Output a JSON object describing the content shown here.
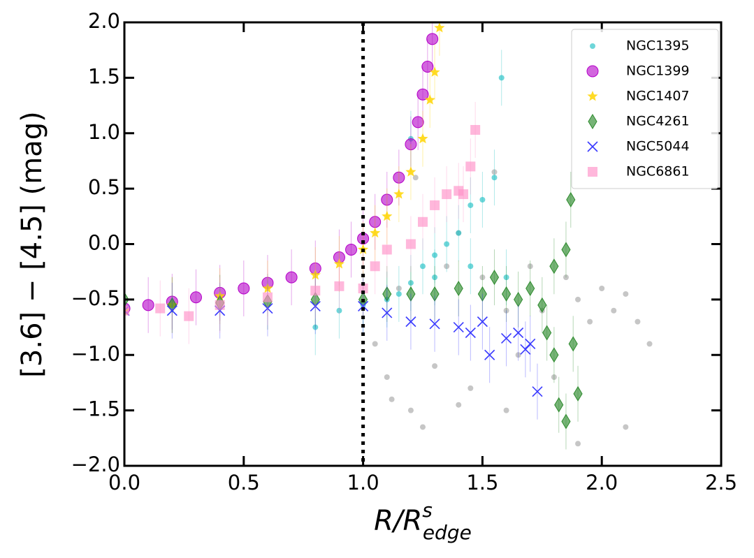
{
  "chart_data": {
    "type": "scatter",
    "xlabel": {
      "base": "R/R",
      "sup": "s",
      "sub": "edge"
    },
    "ylabel": "[3.6] − [4.5] (mag)",
    "xlim": [
      0,
      2.5
    ],
    "ylim": [
      -2,
      2
    ],
    "xticks": [
      {
        "value": 0,
        "label": "0.0"
      },
      0.5,
      {
        "value": 1,
        "label": "1.0"
      },
      1.5,
      {
        "value": 2,
        "label": "2.0"
      },
      2.5
    ],
    "yticks": [
      {
        "value": -2,
        "label": "−2.0"
      },
      {
        "value": -1.5,
        "label": "−1.5"
      },
      {
        "value": -1,
        "label": "−1.0"
      },
      {
        "value": -0.5,
        "label": "−0.5"
      },
      {
        "value": 0,
        "label": "0.0"
      },
      0.5,
      {
        "value": 1,
        "label": "1.0"
      },
      1.5,
      {
        "value": 2,
        "label": "2.0"
      }
    ],
    "vline": 1,
    "legend": "upper right",
    "series": [
      {
        "color": "#a8a8a8",
        "marker": "dot",
        "x": [
          1.05,
          1.1,
          1.12,
          1.15,
          1.2,
          1.22,
          1.3,
          1.35,
          1.4,
          1.45,
          1.5,
          1.55,
          1.6,
          1.65,
          1.7,
          1.75,
          1.8,
          1.85,
          1.9,
          1.95,
          2.0,
          2.05,
          2.1,
          2.15,
          2.2,
          1.25,
          1.4,
          1.6,
          1.9,
          2.1
        ],
        "values": [
          -0.9,
          -1.2,
          -1.4,
          -0.4,
          -1.5,
          0.6,
          -1.1,
          -0.2,
          0.1,
          -1.3,
          -0.3,
          0.65,
          -0.6,
          -1.0,
          -0.2,
          -0.6,
          -1.2,
          -0.3,
          -0.5,
          -0.7,
          -0.4,
          -0.6,
          -0.45,
          -0.7,
          -0.9,
          -1.65,
          -1.45,
          -1.5,
          -1.8,
          -1.65
        ]
      },
      {
        "name": "NGC1395",
        "color": "#20c0c4",
        "marker": "dot",
        "x": [
          0.8,
          0.9,
          1.0,
          1.1,
          1.15,
          1.2,
          1.25,
          1.3,
          1.35,
          1.4,
          1.45,
          1.5,
          1.55,
          1.58,
          1.2,
          1.3,
          1.45,
          1.6
        ],
        "values": [
          -0.75,
          -0.6,
          -0.55,
          -0.5,
          -0.45,
          -0.35,
          -0.2,
          -0.1,
          0.0,
          0.1,
          0.35,
          0.4,
          0.6,
          1.5,
          0.95,
          -0.3,
          -0.2,
          -0.3
        ]
      },
      {
        "name": "NGC1399",
        "color": "#b400c8",
        "marker": "circle",
        "x": [
          0,
          0.1,
          0.2,
          0.3,
          0.4,
          0.5,
          0.6,
          0.7,
          0.8,
          0.9,
          0.95,
          1.0,
          1.05,
          1.1,
          1.15,
          1.2,
          1.23,
          1.25,
          1.27,
          1.29
        ],
        "values": [
          -0.58,
          -0.55,
          -0.52,
          -0.48,
          -0.44,
          -0.4,
          -0.35,
          -0.3,
          -0.22,
          -0.12,
          -0.05,
          0.05,
          0.2,
          0.4,
          0.6,
          0.9,
          1.1,
          1.35,
          1.6,
          1.85
        ]
      },
      {
        "name": "NGC1407",
        "color": "#ffd500",
        "marker": "star",
        "x": [
          0,
          0.2,
          0.4,
          0.6,
          0.8,
          0.9,
          1.0,
          1.05,
          1.1,
          1.15,
          1.2,
          1.25,
          1.28,
          1.3,
          1.32
        ],
        "values": [
          -0.6,
          -0.55,
          -0.47,
          -0.4,
          -0.28,
          -0.18,
          -0.05,
          0.1,
          0.25,
          0.45,
          0.65,
          0.95,
          1.3,
          1.55,
          1.95
        ]
      },
      {
        "name": "NGC4261",
        "color": "#2e8b2e",
        "marker": "diamond",
        "x": [
          0,
          0.2,
          0.4,
          0.6,
          0.8,
          1.0,
          1.1,
          1.2,
          1.3,
          1.4,
          1.5,
          1.55,
          1.6,
          1.65,
          1.7,
          1.75,
          1.77,
          1.8,
          1.82,
          1.85,
          1.88,
          1.9,
          1.8,
          1.85,
          1.87
        ],
        "values": [
          -0.5,
          -0.55,
          -0.53,
          -0.52,
          -0.5,
          -0.5,
          -0.45,
          -0.45,
          -0.45,
          -0.4,
          -0.45,
          -0.3,
          -0.45,
          -0.5,
          -0.4,
          -0.55,
          -0.8,
          -1.0,
          -1.45,
          -1.6,
          -0.9,
          -1.35,
          -0.2,
          -0.05,
          0.4
        ]
      },
      {
        "name": "NGC5044",
        "color": "#3a3aff",
        "marker": "x",
        "x": [
          0,
          0.2,
          0.4,
          0.6,
          0.8,
          1.0,
          1.1,
          1.2,
          1.3,
          1.4,
          1.45,
          1.5,
          1.53,
          1.6,
          1.65,
          1.7,
          1.73,
          1.68
        ],
        "values": [
          -0.6,
          -0.6,
          -0.6,
          -0.58,
          -0.56,
          -0.56,
          -0.62,
          -0.7,
          -0.72,
          -0.75,
          -0.8,
          -0.7,
          -1.0,
          -0.85,
          -0.8,
          -0.9,
          -1.33,
          -0.95
        ]
      },
      {
        "name": "NGC6861",
        "color": "#ff90c8",
        "marker": "square",
        "x": [
          0,
          0.15,
          0.27,
          0.4,
          0.6,
          0.8,
          0.9,
          1.0,
          1.05,
          1.1,
          1.2,
          1.25,
          1.3,
          1.35,
          1.4,
          1.42,
          1.45,
          1.47
        ],
        "values": [
          -0.6,
          -0.58,
          -0.65,
          -0.55,
          -0.48,
          -0.42,
          -0.38,
          -0.4,
          -0.2,
          -0.05,
          0.0,
          0.2,
          0.35,
          0.45,
          0.48,
          0.45,
          0.7,
          1.03
        ]
      }
    ]
  }
}
